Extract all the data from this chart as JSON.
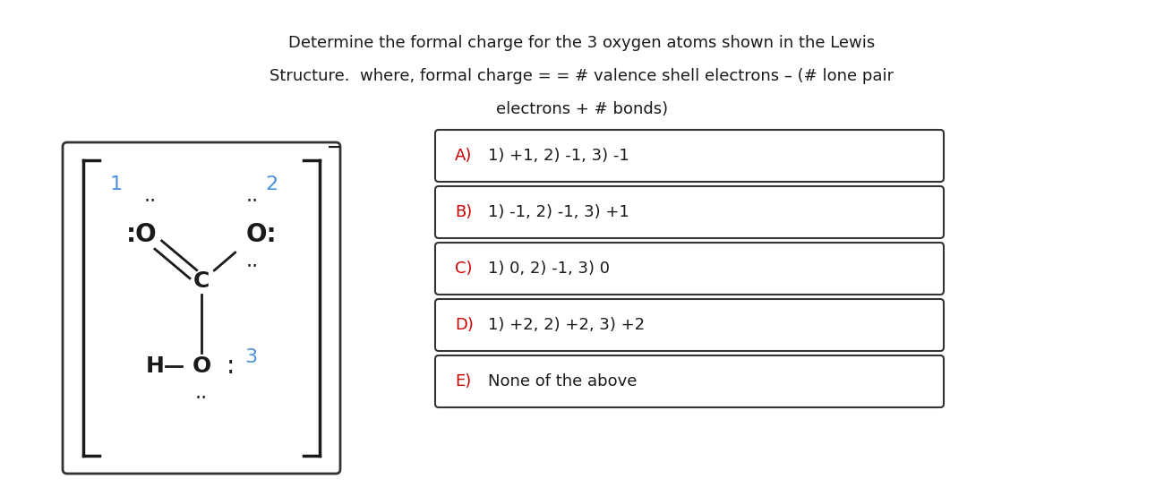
{
  "title_line1": "Determine the formal charge for the 3 oxygen atoms shown in the Lewis",
  "title_line2": "Structure.  where, formal charge = = # valence shell electrons – (# lone pair",
  "title_line3": "electrons + # bonds)",
  "title_fontsize": 13,
  "bg_color": "#ffffff",
  "choices": [
    {
      "label": "A)",
      "text": "1) +1, 2) -1, 3) -1"
    },
    {
      "label": "B)",
      "text": "1) -1, 2) -1, 3) +1"
    },
    {
      "label": "C)",
      "text": "1) 0, 2) -1, 3) 0"
    },
    {
      "label": "D)",
      "text": "1) +2, 2) +2, 3) +2"
    },
    {
      "label": "E)",
      "text": "None of the above"
    }
  ],
  "label_color": "#cc0000",
  "blue_color": "#4a90d9",
  "black_color": "#1a1a1a",
  "box_color": "#333333",
  "lewis_box_color": "#333333"
}
